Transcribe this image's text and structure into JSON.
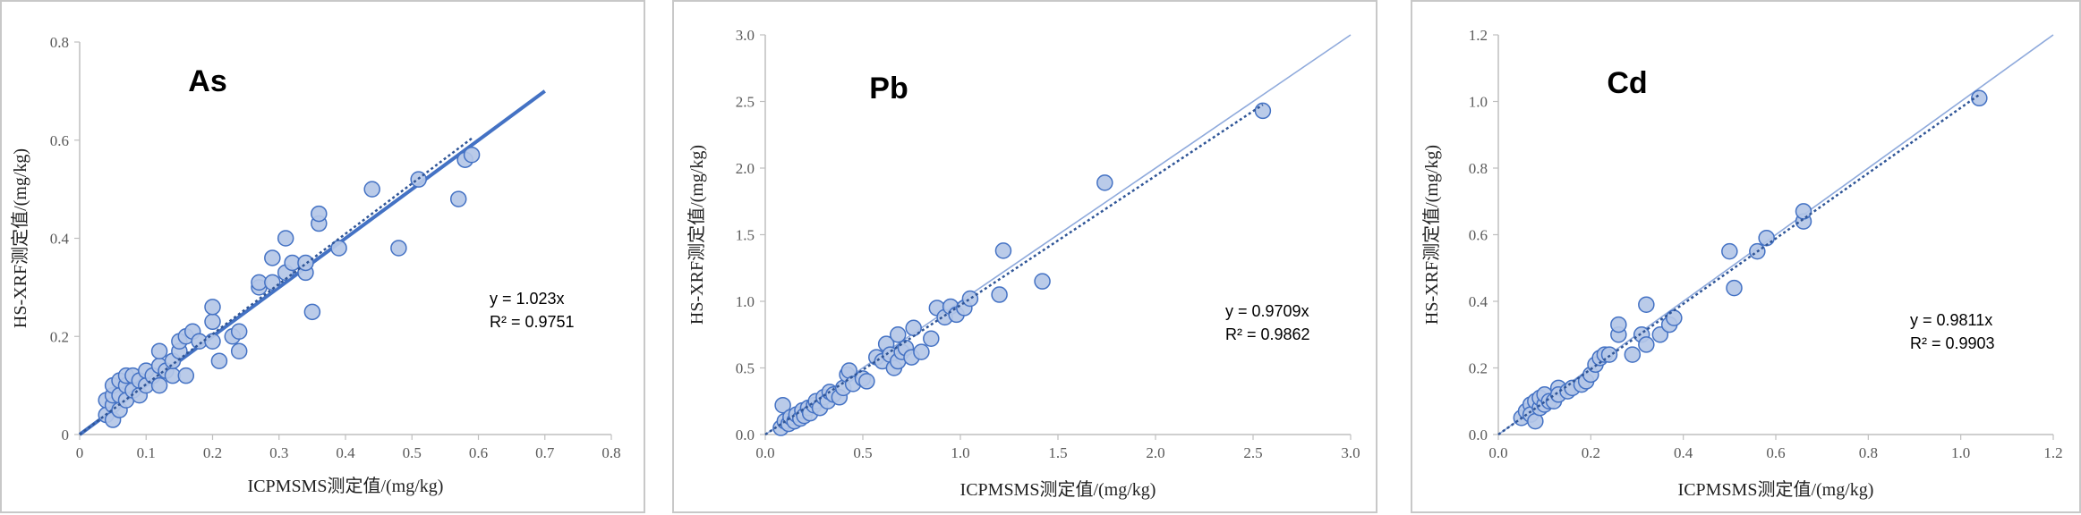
{
  "chart_data": [
    {
      "type": "scatter",
      "title": "As",
      "xlabel": "ICPMSMS测定值/(mg/kg)",
      "ylabel": "HS-XRF测定值/(mg/kg)",
      "xlim": [
        0,
        0.8
      ],
      "ylim": [
        0,
        0.8
      ],
      "xticks": [
        "0",
        "0.1",
        "0.2",
        "0.3",
        "0.4",
        "0.5",
        "0.6",
        "0.7",
        "0.8"
      ],
      "yticks": [
        "0",
        "0.2",
        "0.4",
        "0.6",
        "0.8"
      ],
      "equation": "y = 1.023x",
      "r2": "R² = 0.9751",
      "slope": 1.023,
      "ref_line_end": 0.7,
      "grid": false,
      "points": [
        [
          0.04,
          0.04
        ],
        [
          0.04,
          0.07
        ],
        [
          0.05,
          0.03
        ],
        [
          0.05,
          0.06
        ],
        [
          0.05,
          0.08
        ],
        [
          0.05,
          0.1
        ],
        [
          0.06,
          0.05
        ],
        [
          0.06,
          0.08
        ],
        [
          0.06,
          0.11
        ],
        [
          0.07,
          0.07
        ],
        [
          0.07,
          0.1
        ],
        [
          0.07,
          0.12
        ],
        [
          0.08,
          0.09
        ],
        [
          0.08,
          0.12
        ],
        [
          0.09,
          0.08
        ],
        [
          0.09,
          0.11
        ],
        [
          0.1,
          0.1
        ],
        [
          0.1,
          0.13
        ],
        [
          0.11,
          0.12
        ],
        [
          0.12,
          0.1
        ],
        [
          0.12,
          0.14
        ],
        [
          0.12,
          0.17
        ],
        [
          0.13,
          0.13
        ],
        [
          0.14,
          0.12
        ],
        [
          0.14,
          0.15
        ],
        [
          0.15,
          0.17
        ],
        [
          0.15,
          0.19
        ],
        [
          0.16,
          0.12
        ],
        [
          0.16,
          0.2
        ],
        [
          0.17,
          0.21
        ],
        [
          0.18,
          0.19
        ],
        [
          0.2,
          0.19
        ],
        [
          0.2,
          0.23
        ],
        [
          0.2,
          0.26
        ],
        [
          0.21,
          0.15
        ],
        [
          0.23,
          0.2
        ],
        [
          0.24,
          0.17
        ],
        [
          0.24,
          0.21
        ],
        [
          0.27,
          0.3
        ],
        [
          0.27,
          0.31
        ],
        [
          0.29,
          0.31
        ],
        [
          0.29,
          0.36
        ],
        [
          0.31,
          0.33
        ],
        [
          0.31,
          0.4
        ],
        [
          0.32,
          0.35
        ],
        [
          0.34,
          0.33
        ],
        [
          0.34,
          0.35
        ],
        [
          0.35,
          0.25
        ],
        [
          0.36,
          0.43
        ],
        [
          0.36,
          0.45
        ],
        [
          0.39,
          0.38
        ],
        [
          0.44,
          0.5
        ],
        [
          0.48,
          0.38
        ],
        [
          0.51,
          0.52
        ],
        [
          0.57,
          0.48
        ],
        [
          0.58,
          0.56
        ],
        [
          0.59,
          0.57
        ]
      ]
    },
    {
      "type": "scatter",
      "title": "Pb",
      "xlabel": "ICPMSMS测定值/(mg/kg)",
      "ylabel": "HS-XRF测定值/(mg/kg)",
      "xlim": [
        0,
        3.0
      ],
      "ylim": [
        0,
        3.0
      ],
      "xticks": [
        "0.0",
        "0.5",
        "1.0",
        "1.5",
        "2.0",
        "2.5",
        "3.0"
      ],
      "yticks": [
        "0.0",
        "0.5",
        "1.0",
        "1.5",
        "2.0",
        "2.5",
        "3.0"
      ],
      "equation": "y = 0.9709x",
      "r2": "R² = 0.9862",
      "slope": 0.9709,
      "ref_line_end": 3.0,
      "grid": false,
      "points": [
        [
          0.08,
          0.05
        ],
        [
          0.09,
          0.22
        ],
        [
          0.1,
          0.1
        ],
        [
          0.12,
          0.08
        ],
        [
          0.13,
          0.13
        ],
        [
          0.15,
          0.1
        ],
        [
          0.16,
          0.15
        ],
        [
          0.18,
          0.12
        ],
        [
          0.19,
          0.18
        ],
        [
          0.2,
          0.14
        ],
        [
          0.22,
          0.2
        ],
        [
          0.23,
          0.16
        ],
        [
          0.25,
          0.22
        ],
        [
          0.26,
          0.25
        ],
        [
          0.28,
          0.2
        ],
        [
          0.3,
          0.28
        ],
        [
          0.32,
          0.25
        ],
        [
          0.33,
          0.32
        ],
        [
          0.35,
          0.3
        ],
        [
          0.38,
          0.28
        ],
        [
          0.4,
          0.35
        ],
        [
          0.42,
          0.45
        ],
        [
          0.43,
          0.48
        ],
        [
          0.45,
          0.38
        ],
        [
          0.5,
          0.42
        ],
        [
          0.52,
          0.4
        ],
        [
          0.57,
          0.58
        ],
        [
          0.6,
          0.55
        ],
        [
          0.62,
          0.68
        ],
        [
          0.64,
          0.6
        ],
        [
          0.66,
          0.5
        ],
        [
          0.68,
          0.55
        ],
        [
          0.68,
          0.75
        ],
        [
          0.7,
          0.62
        ],
        [
          0.72,
          0.65
        ],
        [
          0.75,
          0.58
        ],
        [
          0.76,
          0.8
        ],
        [
          0.8,
          0.62
        ],
        [
          0.85,
          0.72
        ],
        [
          0.88,
          0.95
        ],
        [
          0.92,
          0.88
        ],
        [
          0.95,
          0.96
        ],
        [
          0.98,
          0.9
        ],
        [
          1.02,
          0.95
        ],
        [
          1.05,
          1.02
        ],
        [
          1.2,
          1.05
        ],
        [
          1.22,
          1.38
        ],
        [
          1.42,
          1.15
        ],
        [
          1.74,
          1.89
        ],
        [
          2.55,
          2.43
        ]
      ]
    },
    {
      "type": "scatter",
      "title": "Cd",
      "xlabel": "ICPMSMS测定值/(mg/kg)",
      "ylabel": "HS-XRF测定值/(mg/kg)",
      "xlim": [
        0,
        1.2
      ],
      "ylim": [
        0,
        1.2
      ],
      "xticks": [
        "0.0",
        "0.2",
        "0.4",
        "0.6",
        "0.8",
        "1.0",
        "1.2"
      ],
      "yticks": [
        "0.0",
        "0.2",
        "0.4",
        "0.6",
        "0.8",
        "1.0",
        "1.2"
      ],
      "equation": "y = 0.9811x",
      "r2": "R² = 0.9903",
      "slope": 0.9811,
      "ref_line_end": 1.2,
      "grid": false,
      "points": [
        [
          0.05,
          0.05
        ],
        [
          0.06,
          0.07
        ],
        [
          0.07,
          0.09
        ],
        [
          0.07,
          0.06
        ],
        [
          0.08,
          0.1
        ],
        [
          0.08,
          0.04
        ],
        [
          0.09,
          0.08
        ],
        [
          0.09,
          0.11
        ],
        [
          0.1,
          0.09
        ],
        [
          0.1,
          0.12
        ],
        [
          0.11,
          0.1
        ],
        [
          0.12,
          0.1
        ],
        [
          0.13,
          0.14
        ],
        [
          0.13,
          0.12
        ],
        [
          0.15,
          0.13
        ],
        [
          0.16,
          0.14
        ],
        [
          0.18,
          0.15
        ],
        [
          0.19,
          0.16
        ],
        [
          0.2,
          0.18
        ],
        [
          0.21,
          0.21
        ],
        [
          0.22,
          0.23
        ],
        [
          0.23,
          0.24
        ],
        [
          0.24,
          0.24
        ],
        [
          0.26,
          0.3
        ],
        [
          0.26,
          0.33
        ],
        [
          0.29,
          0.24
        ],
        [
          0.31,
          0.3
        ],
        [
          0.32,
          0.27
        ],
        [
          0.32,
          0.39
        ],
        [
          0.35,
          0.3
        ],
        [
          0.37,
          0.33
        ],
        [
          0.38,
          0.35
        ],
        [
          0.5,
          0.55
        ],
        [
          0.51,
          0.44
        ],
        [
          0.56,
          0.55
        ],
        [
          0.58,
          0.59
        ],
        [
          0.66,
          0.64
        ],
        [
          0.66,
          0.67
        ],
        [
          1.04,
          1.01
        ]
      ]
    }
  ]
}
